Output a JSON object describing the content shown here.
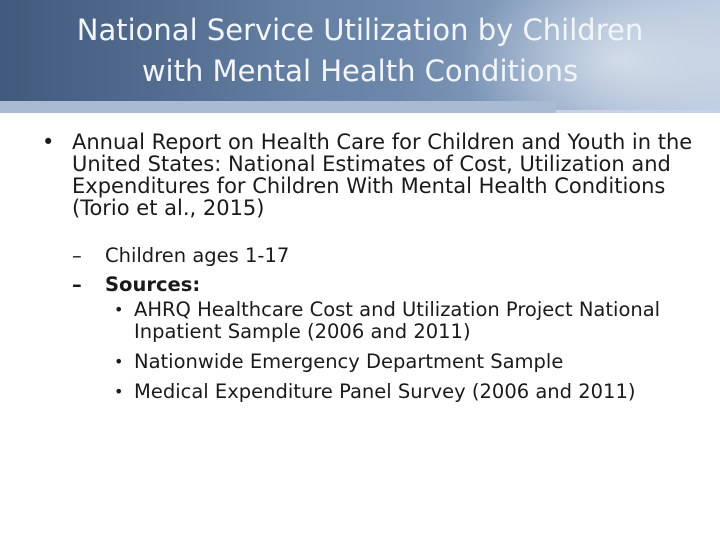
{
  "slide": {
    "title_line1": "National Service Utilization by Children",
    "title_line2": "with Mental Health Conditions",
    "bullets": [
      {
        "text": "Annual Report on Health Care for Children and Youth in the United States: National Estimates of Cost, Utilization and Expenditures for Children With Mental Health Conditions (Torio et al., 2015)",
        "sub": [
          {
            "text": "Children ages 1-17"
          },
          {
            "text": "Sources:",
            "sub": [
              {
                "text": "AHRQ Healthcare Cost and Utilization Project National Inpatient Sample (2006 and 2011)"
              },
              {
                "text": "Nationwide Emergency Department Sample"
              },
              {
                "text": "Medical Expenditure Panel Survey (2006 and 2011)"
              }
            ]
          }
        ]
      }
    ],
    "bullet_glyph": "•",
    "dash_glyph": "–",
    "colors": {
      "title_band": "#5f7aa0",
      "title_text": "#f2f5f9",
      "body_text": "#1a1a1a"
    }
  }
}
